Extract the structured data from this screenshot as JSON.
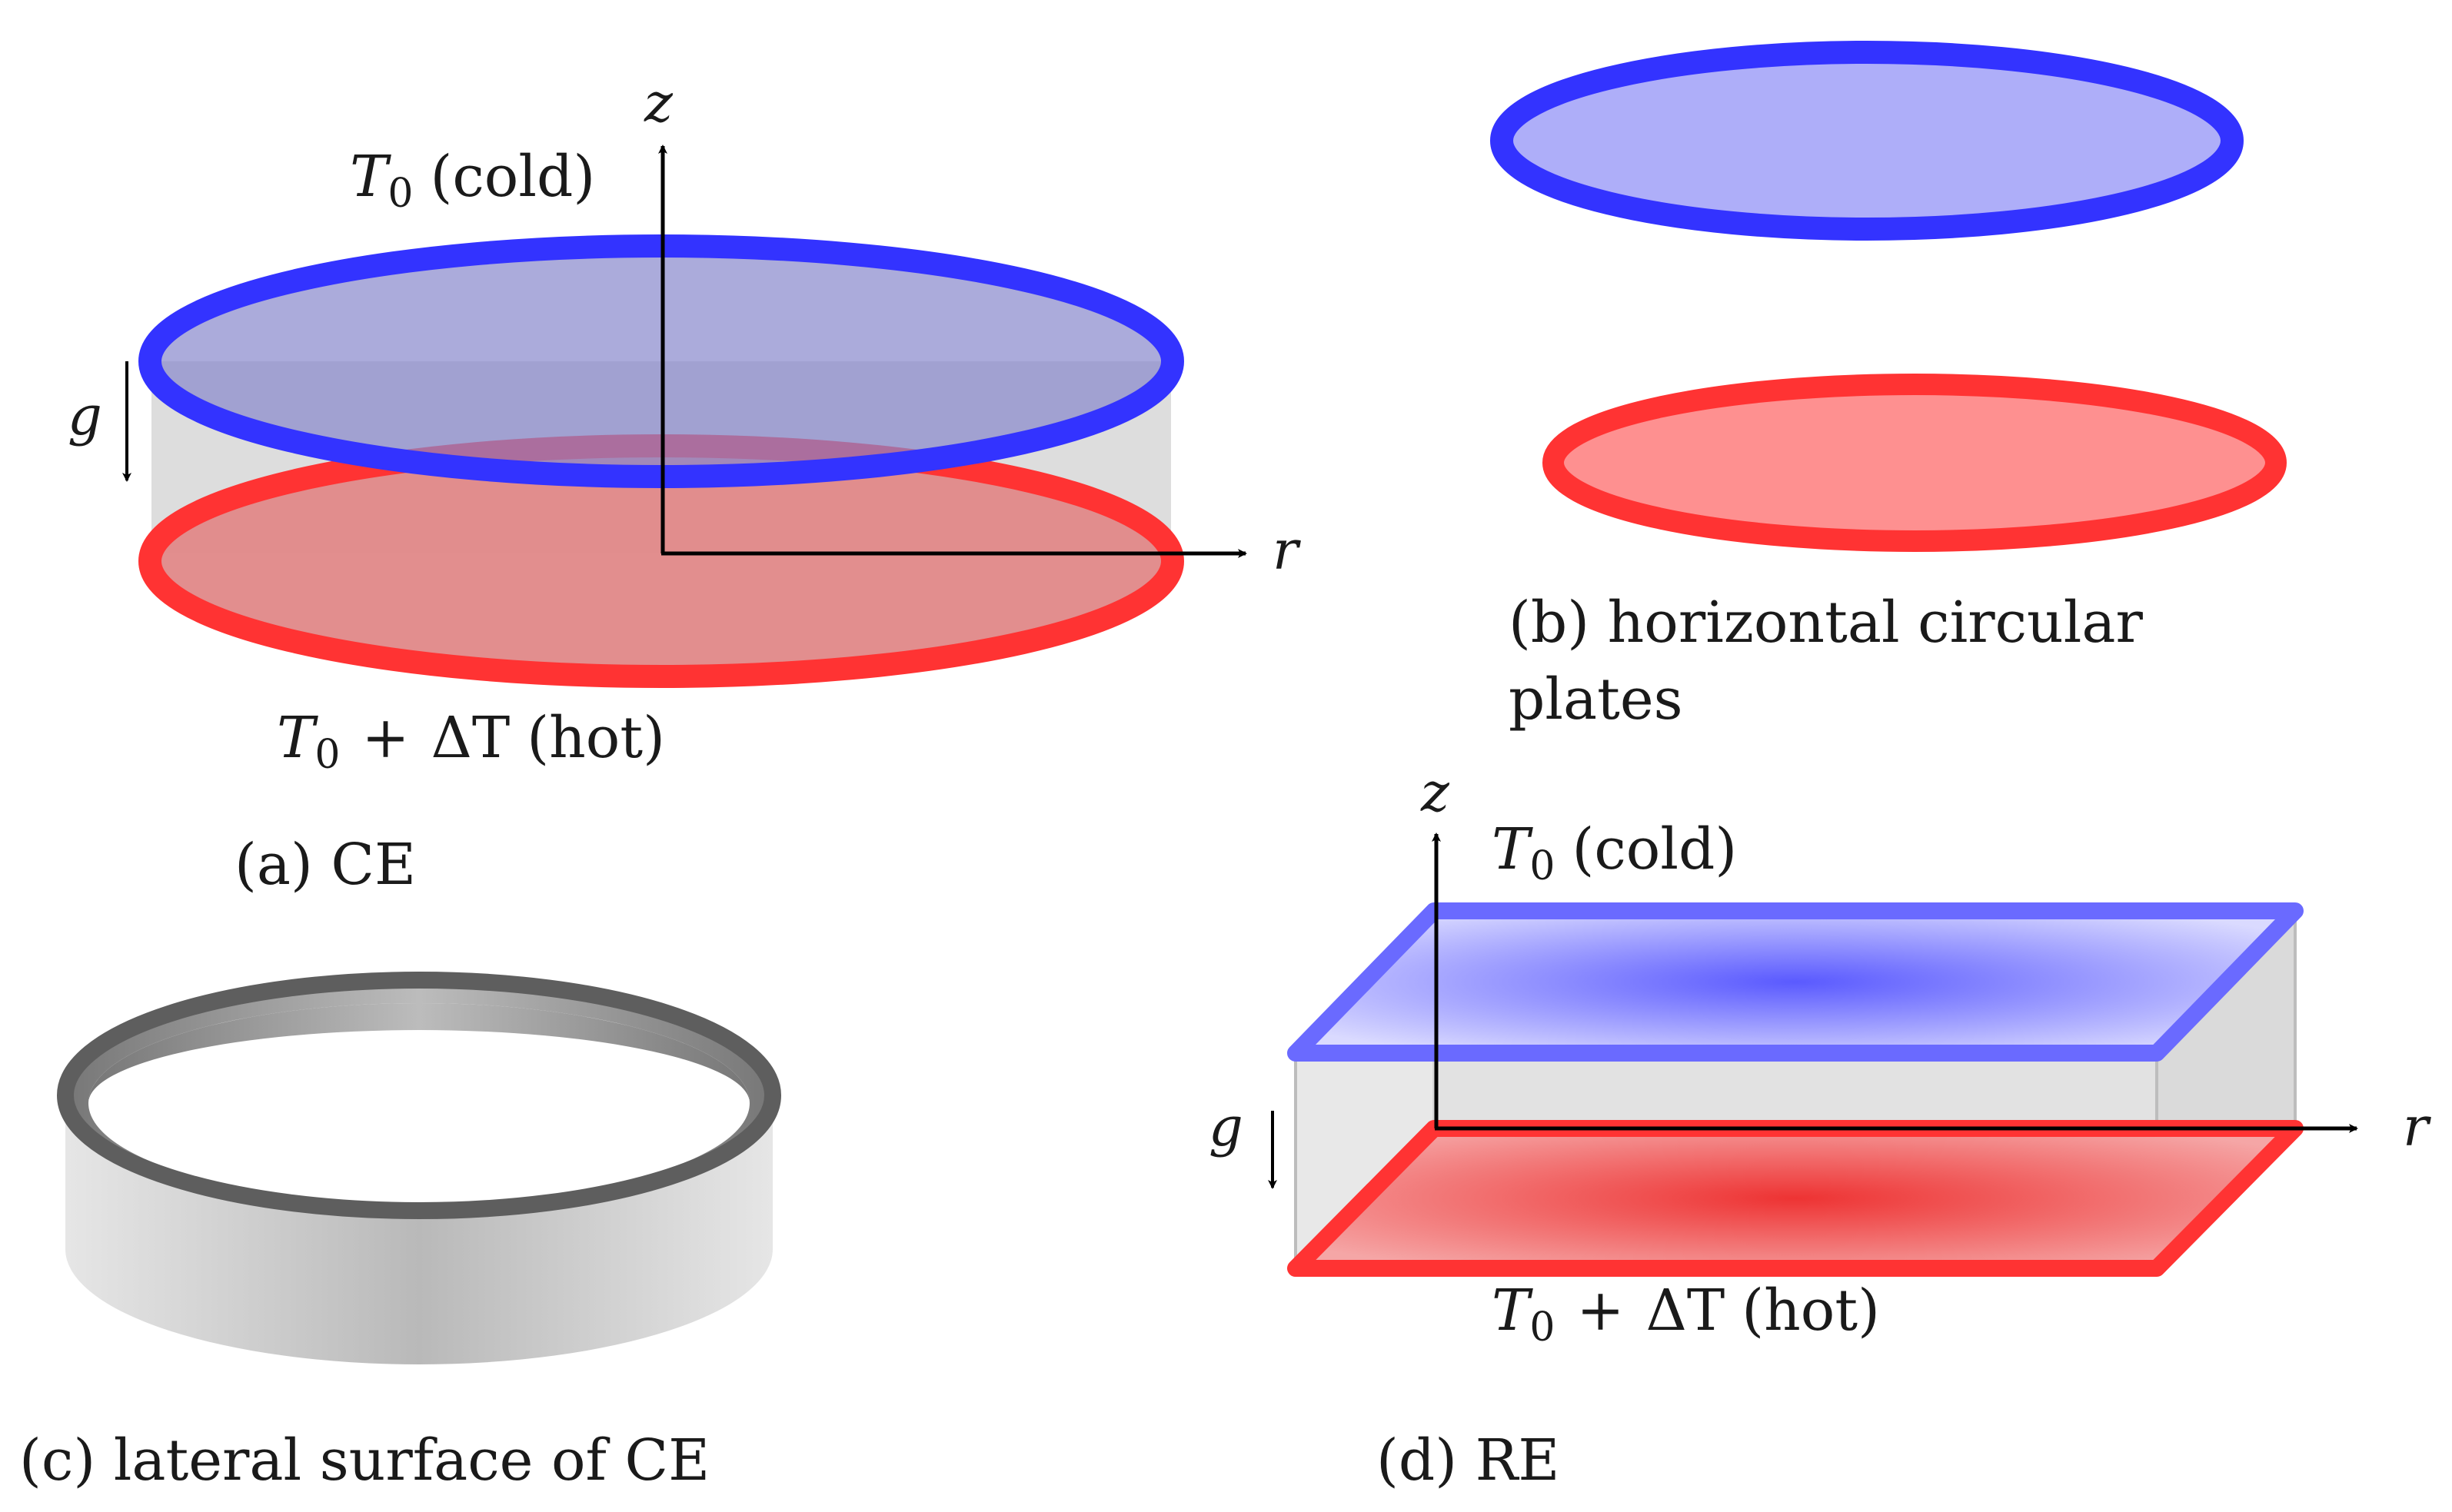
{
  "panels": {
    "a": {
      "caption": "(a) CE",
      "top_plate": {
        "var": "T",
        "sub": "0",
        "desc": "(cold)"
      },
      "bottom_plate": {
        "var": "T",
        "sub": "0",
        "op": "+",
        "delta": "ΔT",
        "desc": "(hot)"
      },
      "gravity": "g",
      "axis_z": "z",
      "axis_r": "r"
    },
    "b": {
      "caption_line1": "(b) horizontal circular",
      "caption_line2": "plates"
    },
    "c": {
      "caption": "(c) lateral surface of CE"
    },
    "d": {
      "caption": "(d) RE",
      "top_plate": {
        "var": "T",
        "sub": "0",
        "desc": "(cold)"
      },
      "bottom_plate": {
        "var": "T",
        "sub": "0",
        "op": "+",
        "delta": "ΔT",
        "desc": "(hot)"
      },
      "gravity": "g",
      "axis_z": "z",
      "axis_r": "r"
    }
  },
  "colors": {
    "cold_stroke": "#3333ff",
    "cold_fill": "#9999ee",
    "hot_stroke": "#ff3333",
    "hot_fill": "#ee9999",
    "wall": "#d9d9d9",
    "ring_dark": "#666666"
  }
}
